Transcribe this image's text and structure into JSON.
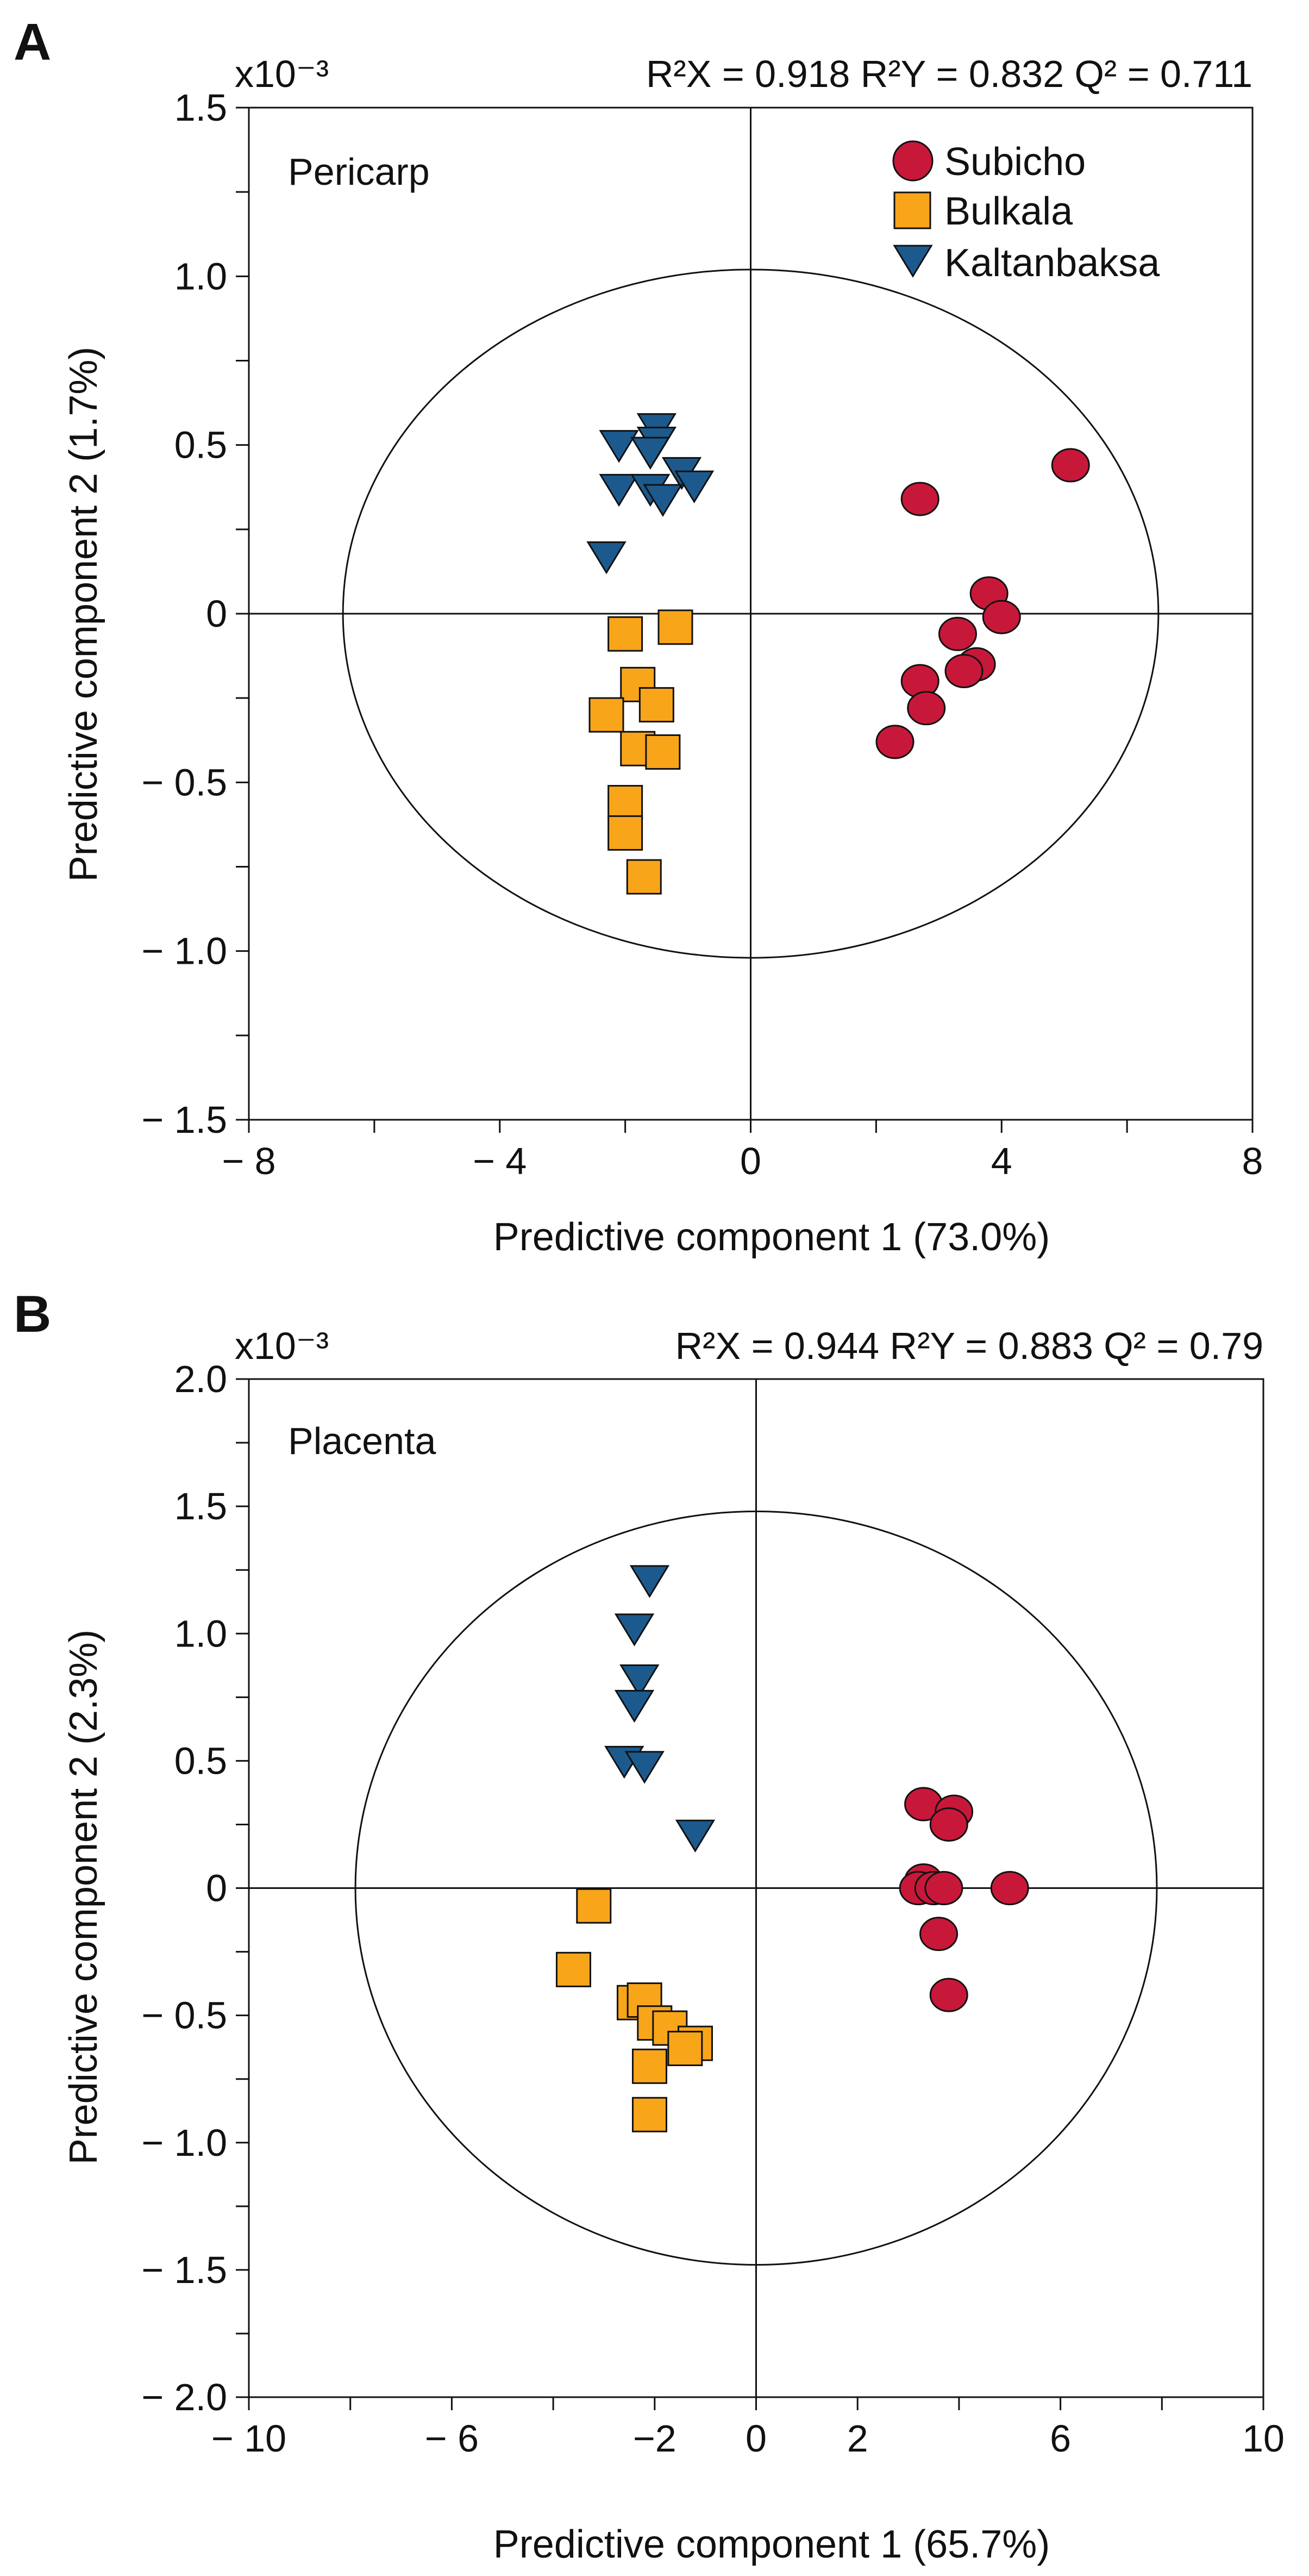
{
  "figure": {
    "panels": [
      "A",
      "B"
    ]
  },
  "colors": {
    "Subicho": "#c8183a",
    "Bulkala": "#f9a51a",
    "Kaltanbaksa": "#1c5a8e",
    "stroke": "#111111"
  },
  "chart_data": [
    {
      "type": "scatter",
      "panel_label": "A",
      "region_label": "Pericarp",
      "stats_text": "R²X = 0.918  R²Y = 0.832  Q² = 0.711",
      "scale_label": "x10⁻³",
      "xlabel": "Predictive component 1 (73.0%)",
      "ylabel": "Predictive component 2 (1.7%)",
      "xlim": [
        -8,
        8
      ],
      "ylim": [
        -1.5,
        1.5
      ],
      "x_ticks": [
        -8,
        -4,
        0,
        4,
        8
      ],
      "x_tick_labels": [
        "− 8",
        "− 4",
        "0",
        "4",
        "8"
      ],
      "x_minor_ticks": [
        -6,
        -2,
        2,
        6
      ],
      "y_ticks": [
        1.5,
        1.0,
        0.5,
        0,
        -0.5,
        -1.0,
        -1.5
      ],
      "y_tick_labels": [
        "1.5",
        "1.0",
        "0.5",
        "0",
        "− 0.5",
        "− 1.0",
        "− 1.5"
      ],
      "ellipse": {
        "rx": 6.5,
        "ry": 1.02
      },
      "legend": [
        "Subicho",
        "Bulkala",
        "Kaltanbaksa"
      ],
      "series": [
        {
          "name": "Subicho",
          "marker": "circle",
          "points": [
            [
              5.1,
              0.44
            ],
            [
              2.7,
              0.34
            ],
            [
              3.8,
              0.06
            ],
            [
              4.0,
              -0.01
            ],
            [
              3.3,
              -0.06
            ],
            [
              3.6,
              -0.15
            ],
            [
              3.4,
              -0.17
            ],
            [
              2.7,
              -0.2
            ],
            [
              2.8,
              -0.28
            ],
            [
              2.3,
              -0.38
            ]
          ]
        },
        {
          "name": "Bulkala",
          "marker": "square",
          "points": [
            [
              -2.0,
              -0.06
            ],
            [
              -1.2,
              -0.04
            ],
            [
              -1.8,
              -0.21
            ],
            [
              -1.5,
              -0.27
            ],
            [
              -2.3,
              -0.3
            ],
            [
              -1.8,
              -0.4
            ],
            [
              -1.4,
              -0.41
            ],
            [
              -2.0,
              -0.56
            ],
            [
              -2.0,
              -0.65
            ],
            [
              -1.7,
              -0.78
            ]
          ]
        },
        {
          "name": "Kaltanbaksa",
          "marker": "triangle-down",
          "points": [
            [
              -1.5,
              0.55
            ],
            [
              -1.5,
              0.51
            ],
            [
              -2.1,
              0.5
            ],
            [
              -1.6,
              0.48
            ],
            [
              -1.1,
              0.42
            ],
            [
              -0.9,
              0.38
            ],
            [
              -2.1,
              0.37
            ],
            [
              -1.6,
              0.37
            ],
            [
              -1.4,
              0.34
            ],
            [
              -2.3,
              0.17
            ]
          ]
        }
      ]
    },
    {
      "type": "scatter",
      "panel_label": "B",
      "region_label": "Placenta",
      "stats_text": "R²X = 0.944  R²Y = 0.883  Q² = 0.79",
      "scale_label": "x10⁻³",
      "xlabel": "Predictive component 1 (65.7%)",
      "ylabel": "Predictive component 2 (2.3%)",
      "xlim": [
        -10,
        10
      ],
      "ylim": [
        -2.0,
        2.0
      ],
      "x_ticks": [
        -10,
        -6,
        -2,
        0,
        2,
        6,
        10
      ],
      "x_tick_labels": [
        "− 10",
        "− 6",
        "−2",
        "0",
        "2",
        "6",
        "10"
      ],
      "x_minor_ticks": [
        -8,
        -4,
        4,
        8
      ],
      "y_ticks": [
        2.0,
        1.5,
        1.0,
        0.5,
        0,
        -0.5,
        -1.0,
        -1.5,
        -2.0
      ],
      "y_tick_labels": [
        "2.0",
        "1.5",
        "1.0",
        "0.5",
        "0",
        "− 0.5",
        "− 1.0",
        "− 1.5",
        "− 2.0"
      ],
      "ellipse": {
        "rx": 7.9,
        "ry": 1.48
      },
      "series": [
        {
          "name": "Subicho",
          "marker": "circle",
          "points": [
            [
              3.3,
              0.33
            ],
            [
              3.9,
              0.3
            ],
            [
              3.8,
              0.25
            ],
            [
              3.3,
              0.03
            ],
            [
              3.2,
              0.0
            ],
            [
              3.5,
              0.0
            ],
            [
              3.7,
              0.0
            ],
            [
              5.0,
              0.0
            ],
            [
              3.6,
              -0.18
            ],
            [
              3.8,
              -0.42
            ]
          ]
        },
        {
          "name": "Bulkala",
          "marker": "square",
          "points": [
            [
              -3.2,
              -0.07
            ],
            [
              -3.6,
              -0.32
            ],
            [
              -2.4,
              -0.45
            ],
            [
              -2.2,
              -0.44
            ],
            [
              -2.0,
              -0.53
            ],
            [
              -1.7,
              -0.55
            ],
            [
              -1.2,
              -0.61
            ],
            [
              -1.4,
              -0.63
            ],
            [
              -2.1,
              -0.7
            ],
            [
              -2.1,
              -0.89
            ]
          ]
        },
        {
          "name": "Kaltanbaksa",
          "marker": "triangle-down",
          "points": [
            [
              -2.1,
              1.21
            ],
            [
              -2.4,
              1.02
            ],
            [
              -2.3,
              0.82
            ],
            [
              -2.4,
              0.72
            ],
            [
              -2.6,
              0.5
            ],
            [
              -2.2,
              0.48
            ],
            [
              -1.2,
              0.21
            ]
          ]
        }
      ]
    }
  ]
}
